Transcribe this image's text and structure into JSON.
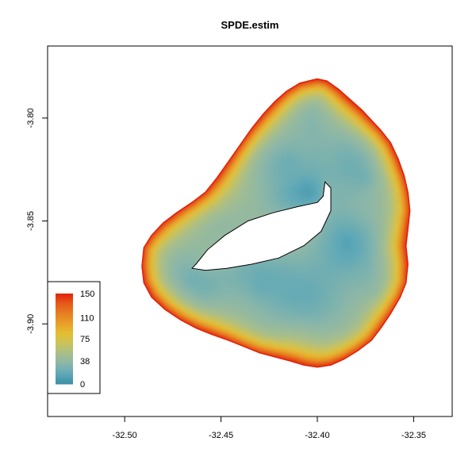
{
  "chart_data": {
    "type": "heatmap",
    "title": "SPDE.estim",
    "xlabel": "",
    "ylabel": "",
    "xlim": [
      -32.54,
      -32.33
    ],
    "ylim": [
      -3.945,
      -3.765
    ],
    "x_ticks": [
      -32.5,
      -32.45,
      -32.4,
      -32.35
    ],
    "x_tick_labels": [
      "-32.50",
      "-32.45",
      "-32.40",
      "-32.35"
    ],
    "y_ticks": [
      -3.8,
      -3.85,
      -3.9
    ],
    "y_tick_labels": [
      "-3.80",
      "-3.85",
      "-3.90"
    ],
    "grid": false,
    "legend_placement": "bottom-left",
    "color_scale": {
      "min": 0,
      "max": 150,
      "tick_values": [
        0,
        38,
        75,
        110,
        150
      ],
      "tick_labels": [
        "0",
        "38",
        "75",
        "110",
        "150"
      ],
      "colors": [
        "#3a8fa6",
        "#5ea8b8",
        "#8ab6a9",
        "#a7be8c",
        "#c9c25c",
        "#e4bf32",
        "#e8a02a",
        "#e67f22",
        "#e55a1a",
        "#e3220c"
      ]
    },
    "island_outline": [
      [
        -32.4,
        -3.781
      ],
      [
        -32.395,
        -3.782
      ],
      [
        -32.389,
        -3.786
      ],
      [
        -32.383,
        -3.791
      ],
      [
        -32.377,
        -3.796
      ],
      [
        -32.372,
        -3.801
      ],
      [
        -32.367,
        -3.806
      ],
      [
        -32.362,
        -3.812
      ],
      [
        -32.358,
        -3.82
      ],
      [
        -32.355,
        -3.828
      ],
      [
        -32.353,
        -3.836
      ],
      [
        -32.352,
        -3.845
      ],
      [
        -32.353,
        -3.854
      ],
      [
        -32.354,
        -3.862
      ],
      [
        -32.353,
        -3.871
      ],
      [
        -32.354,
        -3.88
      ],
      [
        -32.357,
        -3.887
      ],
      [
        -32.362,
        -3.895
      ],
      [
        -32.367,
        -3.902
      ],
      [
        -32.372,
        -3.908
      ],
      [
        -32.379,
        -3.913
      ],
      [
        -32.386,
        -3.917
      ],
      [
        -32.393,
        -3.92
      ],
      [
        -32.4,
        -3.921
      ],
      [
        -32.407,
        -3.92
      ],
      [
        -32.414,
        -3.918
      ],
      [
        -32.422,
        -3.916
      ],
      [
        -32.43,
        -3.914
      ],
      [
        -32.438,
        -3.911
      ],
      [
        -32.446,
        -3.908
      ],
      [
        -32.455,
        -3.905
      ],
      [
        -32.463,
        -3.902
      ],
      [
        -32.471,
        -3.898
      ],
      [
        -32.479,
        -3.893
      ],
      [
        -32.486,
        -3.887
      ],
      [
        -32.49,
        -3.88
      ],
      [
        -32.491,
        -3.872
      ],
      [
        -32.49,
        -3.863
      ],
      [
        -32.486,
        -3.857
      ],
      [
        -32.48,
        -3.851
      ],
      [
        -32.473,
        -3.846
      ],
      [
        -32.465,
        -3.841
      ],
      [
        -32.458,
        -3.836
      ],
      [
        -32.452,
        -3.829
      ],
      [
        -32.446,
        -3.821
      ],
      [
        -32.44,
        -3.813
      ],
      [
        -32.434,
        -3.805
      ],
      [
        -32.428,
        -3.798
      ],
      [
        -32.422,
        -3.792
      ],
      [
        -32.416,
        -3.787
      ],
      [
        -32.409,
        -3.783
      ]
    ],
    "interior_hole": [
      [
        -32.396,
        -3.831
      ],
      [
        -32.397,
        -3.838
      ],
      [
        -32.4,
        -3.841
      ],
      [
        -32.41,
        -3.843
      ],
      [
        -32.423,
        -3.846
      ],
      [
        -32.436,
        -3.85
      ],
      [
        -32.448,
        -3.857
      ],
      [
        -32.457,
        -3.864
      ],
      [
        -32.463,
        -3.871
      ],
      [
        -32.465,
        -3.873
      ],
      [
        -32.458,
        -3.874
      ],
      [
        -32.447,
        -3.873
      ],
      [
        -32.434,
        -3.871
      ],
      [
        -32.42,
        -3.868
      ],
      [
        -32.407,
        -3.862
      ],
      [
        -32.398,
        -3.855
      ],
      [
        -32.393,
        -3.845
      ],
      [
        -32.393,
        -3.834
      ]
    ],
    "low_value_cores": [
      [
        -32.405,
        -3.836
      ],
      [
        -32.375,
        -3.829
      ],
      [
        -32.37,
        -3.885
      ],
      [
        -32.43,
        -3.883
      ],
      [
        -32.465,
        -3.875
      ],
      [
        -32.415,
        -3.82
      ],
      [
        -32.385,
        -3.86
      ]
    ]
  }
}
